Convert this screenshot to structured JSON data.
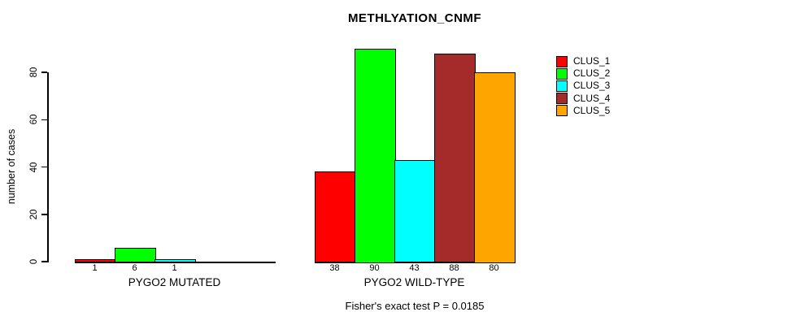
{
  "figure": {
    "title": "METHLYATION_CNMF",
    "annotation": "Fisher's exact test P = 0.0185"
  },
  "chart_data": {
    "type": "bar",
    "title": "METHLYATION_CNMF",
    "xlabel": "",
    "ylabel": "number of cases",
    "ylim": [
      0,
      90
    ],
    "yticks": [
      0,
      20,
      40,
      60,
      80
    ],
    "grid": false,
    "bar_value_labels": true,
    "categories": [
      "PYGO2 MUTATED",
      "PYGO2 WILD-TYPE"
    ],
    "series": [
      {
        "name": "CLUS_1",
        "color": "#ff0000",
        "values": [
          1,
          38
        ]
      },
      {
        "name": "CLUS_2",
        "color": "#00ff00",
        "values": [
          6,
          90
        ]
      },
      {
        "name": "CLUS_3",
        "color": "#00ffff",
        "values": [
          1,
          43
        ]
      },
      {
        "name": "CLUS_4",
        "color": "#a52a2a",
        "values": [
          0,
          88
        ]
      },
      {
        "name": "CLUS_5",
        "color": "#ffa500",
        "values": [
          0,
          80
        ]
      }
    ],
    "legend": {
      "position": "topright",
      "entries": [
        "CLUS_1",
        "CLUS_2",
        "CLUS_3",
        "CLUS_4",
        "CLUS_5"
      ]
    },
    "annotation": "Fisher's exact test P = 0.0185",
    "axis_color": "#000000",
    "background_color": "#ffffff"
  }
}
